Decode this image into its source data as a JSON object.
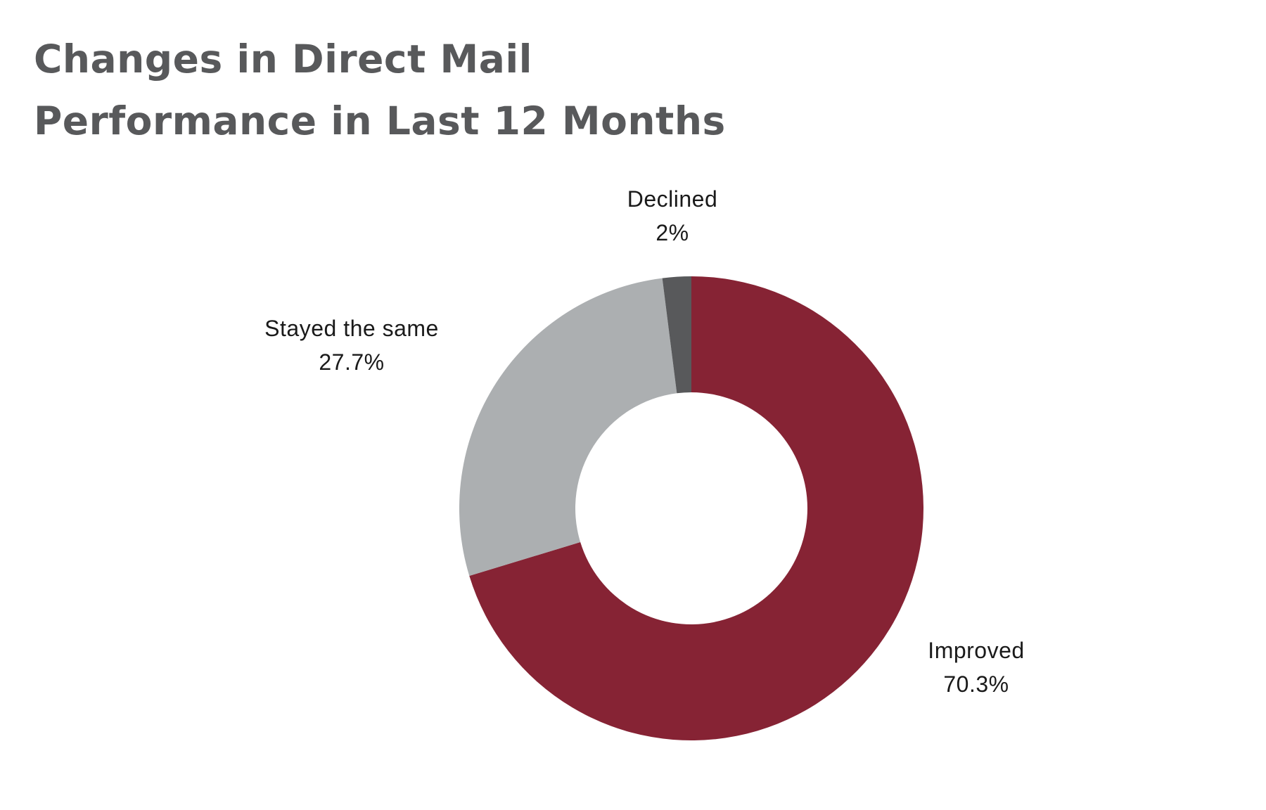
{
  "title_lines": [
    "Changes in Direct Mail",
    "Performance in Last 12 Months"
  ],
  "chart_data": {
    "type": "pie",
    "donut": true,
    "title": "Changes in Direct Mail Performance in Last 12 Months",
    "slices": [
      {
        "label": "Improved",
        "value": 70.3,
        "display": "70.3%",
        "color": "#862334"
      },
      {
        "label": "Stayed the same",
        "value": 27.7,
        "display": "27.7%",
        "color": "#acafb1"
      },
      {
        "label": "Declined",
        "value": 2,
        "display": "2%",
        "color": "#58595b"
      }
    ],
    "start": "12 o'clock",
    "direction": "clockwise",
    "legend": "none"
  }
}
